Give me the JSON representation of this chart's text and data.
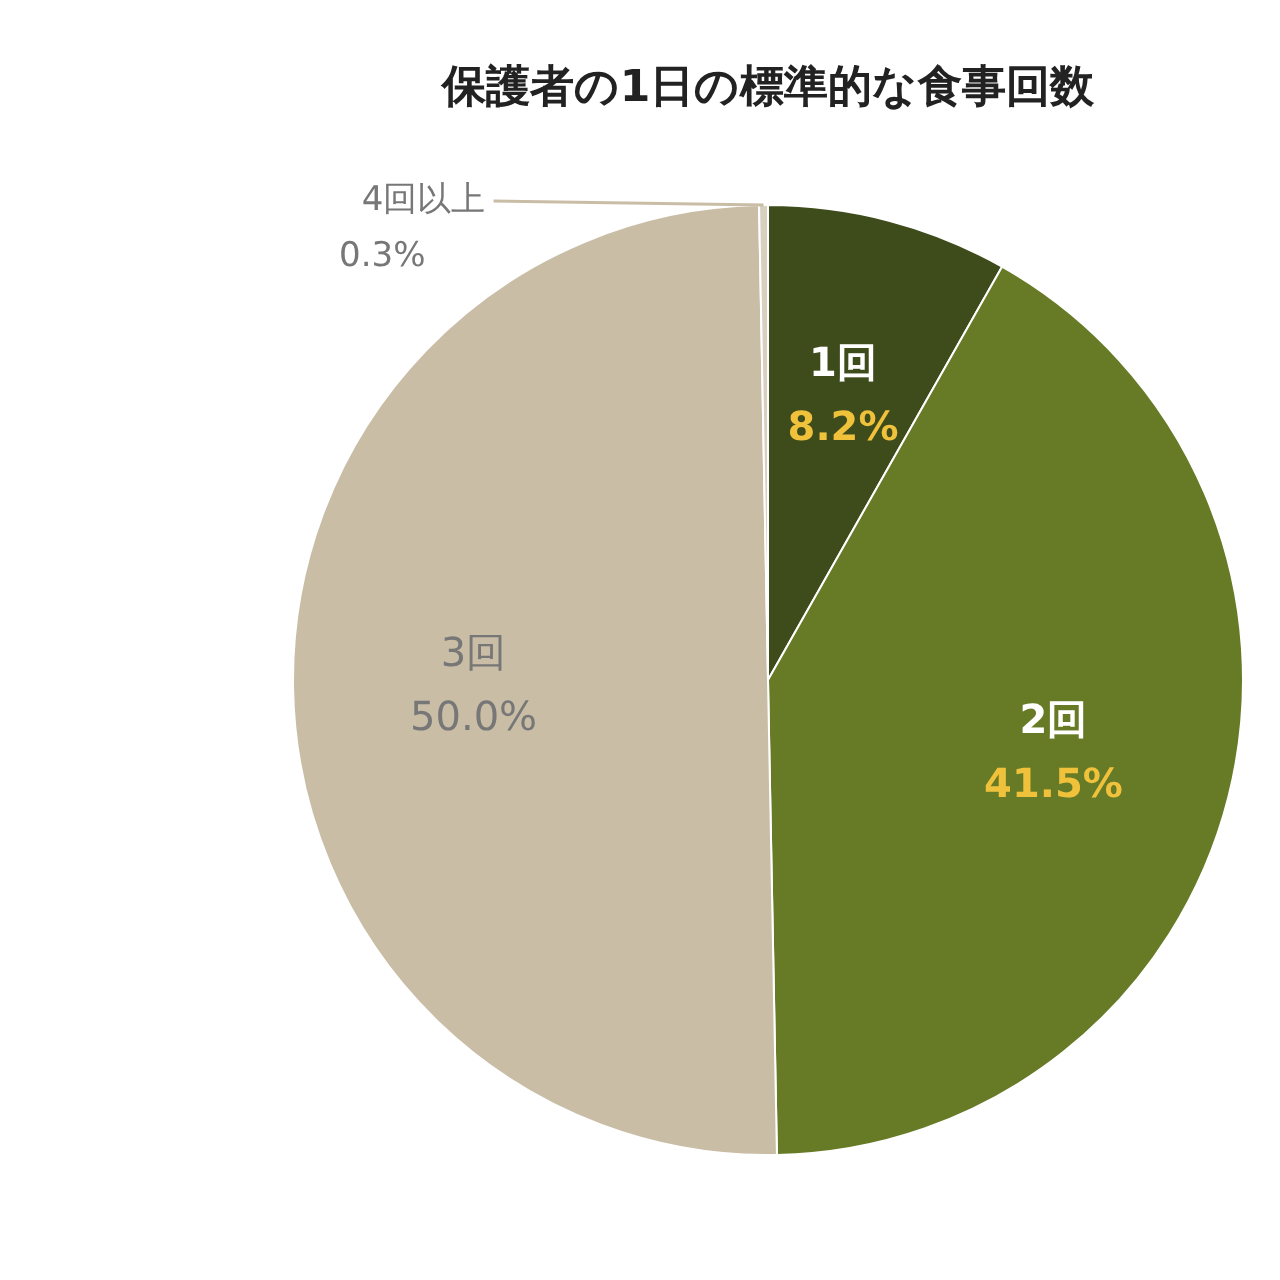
{
  "chart_data": {
    "type": "pie",
    "title": "保護者の1日の標準的な食事回数",
    "categories": [
      "1回",
      "2回",
      "3回",
      "4回以上"
    ],
    "values": [
      8.2,
      41.5,
      50.0,
      0.3
    ],
    "value_labels": [
      "8.2%",
      "41.5%",
      "50.0%",
      "0.3%"
    ],
    "colors": [
      "#3e4b1b",
      "#677a26",
      "#c9bda6",
      "#d8cfbf"
    ],
    "legend": false
  }
}
